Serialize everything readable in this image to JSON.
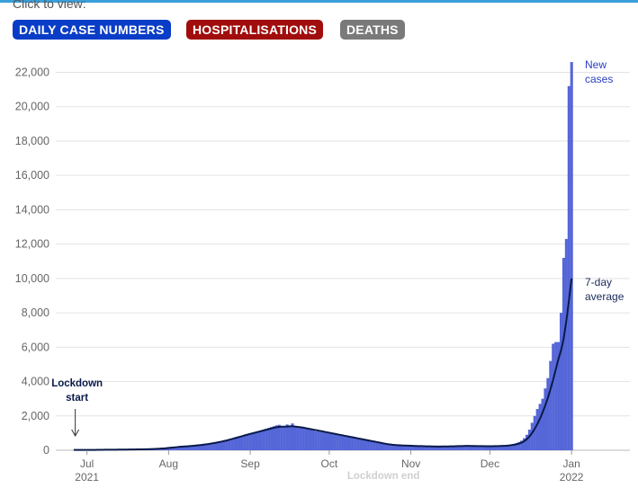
{
  "header": {
    "click_label": "Click to view:",
    "buttons": [
      {
        "label": "DAILY CASE NUMBERS",
        "color": "#0a3dc7"
      },
      {
        "label": "HOSPITALISATIONS",
        "color": "#a10d0d"
      },
      {
        "label": "DEATHS",
        "color": "#7a7a7a"
      }
    ]
  },
  "colors": {
    "bars": "#5566d8",
    "average_line": "#0a1a4a",
    "grid": "#e3e3e3",
    "axis_text": "#666666"
  },
  "chart_data": {
    "type": "bar",
    "title": "",
    "xlabel": "",
    "ylabel": "",
    "ylim": [
      0,
      22000
    ],
    "x_start": "2021-06-26",
    "x_end": "2022-01-03",
    "y_ticks": [
      "0",
      "2,000",
      "4,000",
      "6,000",
      "8,000",
      "10,000",
      "12,000",
      "14,000",
      "16,000",
      "18,000",
      "20,000",
      "22,000"
    ],
    "x_ticks": [
      {
        "date": "2021-07-01",
        "label": "Jul",
        "sublabel": "2021"
      },
      {
        "date": "2021-08-01",
        "label": "Aug",
        "sublabel": ""
      },
      {
        "date": "2021-09-01",
        "label": "Sep",
        "sublabel": ""
      },
      {
        "date": "2021-10-01",
        "label": "Oct",
        "sublabel": ""
      },
      {
        "date": "2021-11-01",
        "label": "Nov",
        "sublabel": ""
      },
      {
        "date": "2021-12-01",
        "label": "Dec",
        "sublabel": ""
      },
      {
        "date": "2022-01-01",
        "label": "Jan",
        "sublabel": "2022"
      }
    ],
    "series": [
      {
        "name": "New cases",
        "type": "bar",
        "values": [
          15,
          15,
          15,
          15,
          15,
          20,
          20,
          20,
          25,
          25,
          25,
          30,
          30,
          30,
          30,
          35,
          35,
          40,
          40,
          40,
          45,
          45,
          50,
          55,
          55,
          55,
          60,
          65,
          65,
          70,
          80,
          85,
          100,
          110,
          120,
          140,
          160,
          170,
          190,
          210,
          220,
          230,
          240,
          250,
          260,
          270,
          280,
          300,
          320,
          340,
          360,
          380,
          410,
          440,
          470,
          500,
          530,
          560,
          600,
          640,
          690,
          740,
          780,
          820,
          870,
          920,
          960,
          1000,
          1040,
          1080,
          1120,
          1160,
          1200,
          1250,
          1300,
          1350,
          1400,
          1450,
          1480,
          1400,
          1380,
          1500,
          1420,
          1560,
          1350,
          1380,
          1360,
          1300,
          1250,
          1280,
          1200,
          1150,
          1100,
          1080,
          1060,
          1040,
          1000,
          980,
          960,
          940,
          920,
          900,
          870,
          840,
          820,
          780,
          750,
          720,
          690,
          660,
          630,
          600,
          580,
          550,
          530,
          500,
          470,
          440,
          410,
          380,
          340,
          320,
          300,
          290,
          280,
          270,
          270,
          260,
          260,
          250,
          250,
          240,
          240,
          230,
          230,
          220,
          220,
          220,
          210,
          210,
          220,
          220,
          230,
          230,
          240,
          250,
          250,
          260,
          260,
          270,
          270,
          260,
          250,
          250,
          240,
          240,
          230,
          230,
          240,
          240,
          250,
          250,
          260,
          270,
          280,
          300,
          330,
          370,
          420,
          480,
          560,
          700,
          900,
          1200,
          1600,
          2000,
          2400,
          2700,
          3000,
          3600,
          4200,
          5200,
          6200,
          6300,
          6300,
          8000,
          11200,
          12300,
          21200,
          22600
        ]
      },
      {
        "name": "7-day average",
        "type": "line",
        "values": [
          20,
          20,
          20,
          20,
          20,
          20,
          20,
          22,
          22,
          24,
          26,
          28,
          30,
          30,
          32,
          33,
          35,
          36,
          38,
          40,
          42,
          44,
          46,
          48,
          50,
          52,
          55,
          58,
          60,
          64,
          70,
          76,
          85,
          95,
          105,
          118,
          135,
          150,
          165,
          180,
          195,
          208,
          220,
          232,
          245,
          258,
          270,
          285,
          300,
          320,
          340,
          360,
          385,
          410,
          440,
          470,
          500,
          535,
          570,
          610,
          650,
          695,
          740,
          780,
          820,
          870,
          910,
          950,
          990,
          1030,
          1070,
          1110,
          1150,
          1190,
          1230,
          1270,
          1310,
          1340,
          1360,
          1370,
          1370,
          1380,
          1390,
          1400,
          1380,
          1360,
          1340,
          1320,
          1290,
          1260,
          1230,
          1200,
          1170,
          1140,
          1110,
          1080,
          1050,
          1020,
          990,
          960,
          930,
          900,
          870,
          840,
          810,
          780,
          750,
          720,
          690,
          660,
          630,
          600,
          570,
          540,
          510,
          480,
          450,
          420,
          390,
          360,
          340,
          320,
          305,
          295,
          285,
          278,
          272,
          266,
          260,
          255,
          250,
          245,
          240,
          235,
          230,
          226,
          222,
          220,
          218,
          218,
          220,
          222,
          225,
          228,
          232,
          236,
          240,
          245,
          250,
          252,
          252,
          250,
          248,
          245,
          242,
          240,
          238,
          236,
          236,
          238,
          240,
          244,
          250,
          256,
          264,
          276,
          292,
          314,
          344,
          384,
          440,
          520,
          640,
          800,
          1000,
          1240,
          1520,
          1840,
          2200,
          2600,
          3050,
          3550,
          4100,
          4700,
          5300,
          5800,
          6500,
          7500,
          8700,
          10000
        ]
      }
    ],
    "annotations": [
      {
        "label": "New cases",
        "lines": [
          "New",
          "cases"
        ]
      },
      {
        "label": "7-day average",
        "lines": [
          "7-day",
          "average"
        ]
      },
      {
        "label": "Lockdown start",
        "lines": [
          "Lockdown",
          "start"
        ],
        "date": "2021-07-01"
      },
      {
        "label": "Lockdown end",
        "lines": [
          "Lockdown end"
        ],
        "date": "2021-10-25"
      }
    ]
  }
}
